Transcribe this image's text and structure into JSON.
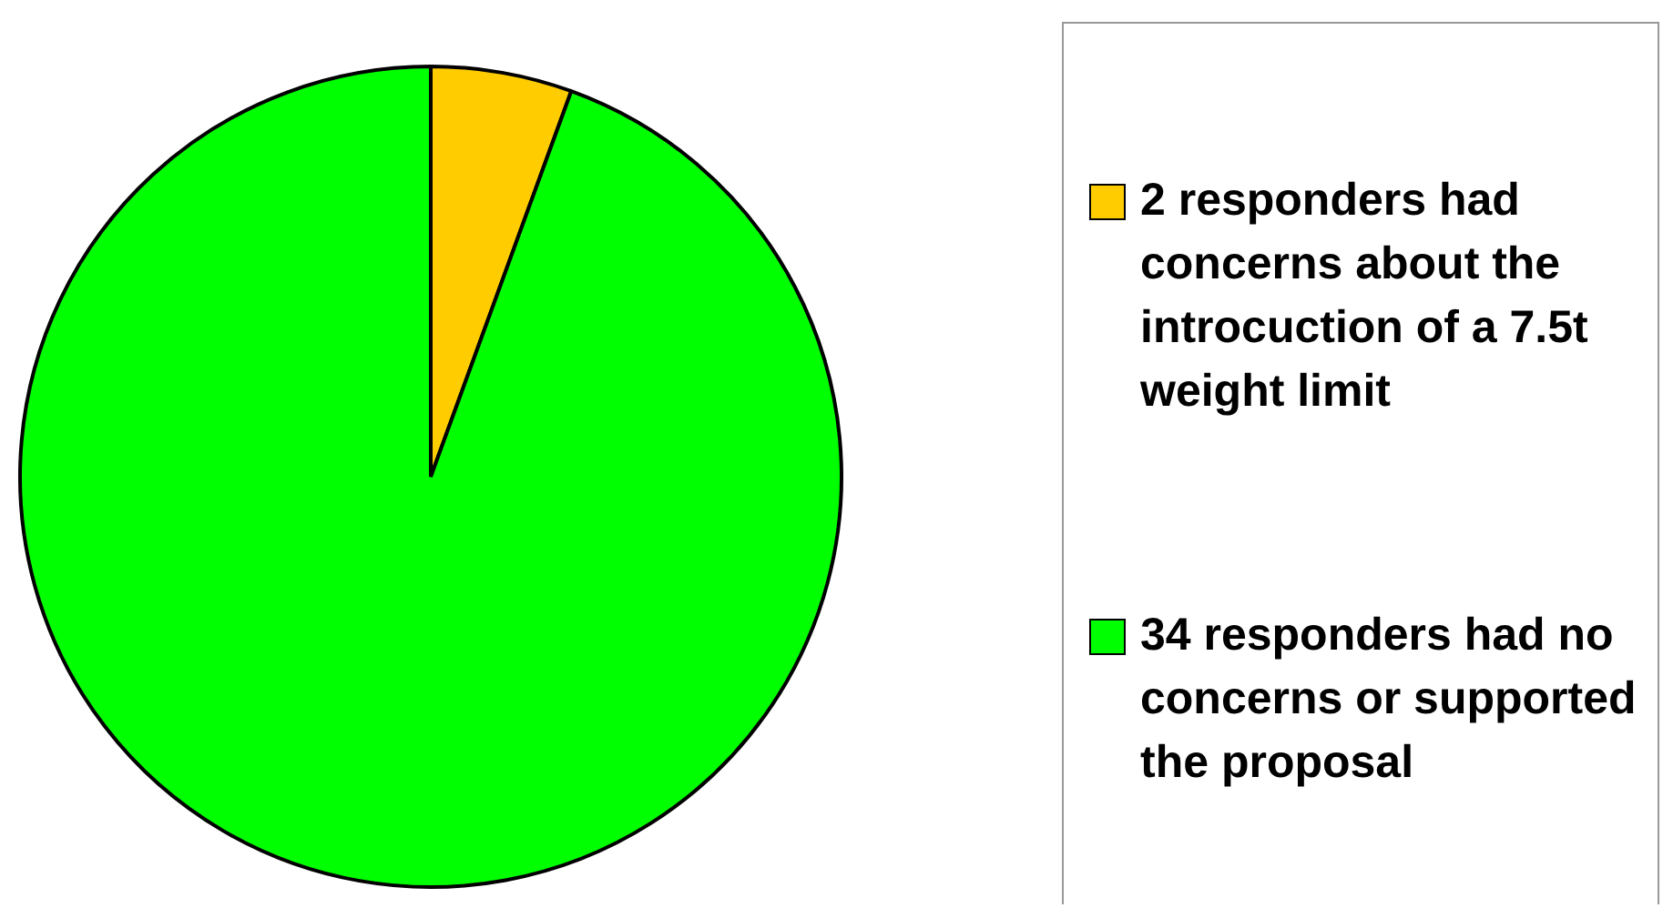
{
  "chart_data": {
    "type": "pie",
    "categories": [
      "2 responders had concerns about the introcuction of a 7.5t weight limit",
      "34 responders had no concerns or supported the proposal"
    ],
    "values": [
      2,
      34
    ],
    "colors": [
      "#ffcc00",
      "#00ff00"
    ],
    "legend": "right"
  }
}
